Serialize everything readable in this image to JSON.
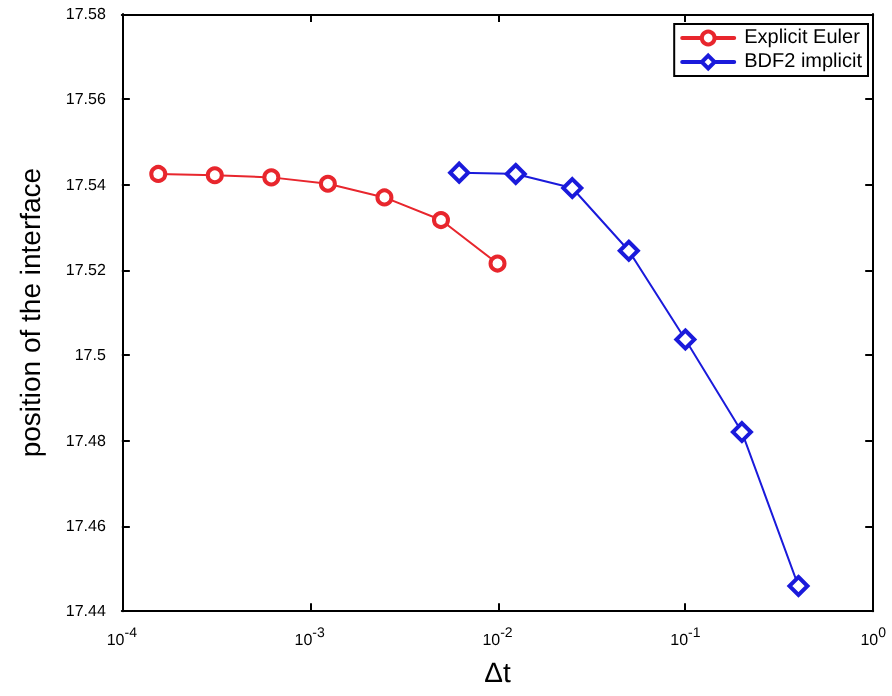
{
  "chart_data": {
    "type": "line",
    "xlabel": "Δt",
    "ylabel": "position of the interface",
    "log": "x",
    "xlim": [
      0.0001,
      1
    ],
    "xticks": [
      {
        "value": 0.0001,
        "label": "10$^{-4}$"
      },
      {
        "value": 0.001,
        "label": "10$^{-3}$"
      },
      {
        "value": 0.01,
        "label": "10$^{-2}$"
      },
      {
        "value": 0.1,
        "label": "10$^{-1}$"
      },
      {
        "value": 1,
        "label": "10$^{0}$"
      }
    ],
    "ylim": [
      17.44,
      17.58
    ],
    "yticks": [
      17.44,
      17.46,
      17.48,
      17.5,
      17.52,
      17.54,
      17.56,
      17.58
    ],
    "grid": false,
    "legend": "top right",
    "series": [
      {
        "name": "Explicit Euler",
        "color": "#e8262d",
        "marker": "circle",
        "x": [
          0.00015625,
          0.0003125,
          0.000625,
          0.00125,
          0.0025,
          0.005,
          0.01
        ],
        "values": [
          17.5425,
          17.5422,
          17.5417,
          17.5402,
          17.537,
          17.5317,
          17.5215
        ]
      },
      {
        "name": "BDF2 implicit",
        "color": "#1a1adb",
        "marker": "diamond",
        "x": [
          0.00625,
          0.0125,
          0.025,
          0.05,
          0.1,
          0.2,
          0.4
        ],
        "values": [
          17.5428,
          17.5425,
          17.5392,
          17.5245,
          17.5037,
          17.482,
          17.4459
        ]
      }
    ]
  }
}
